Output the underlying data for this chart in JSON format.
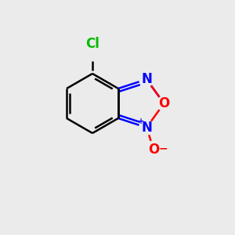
{
  "background_color": "#ebebeb",
  "bond_color": "#000000",
  "N_color": "#0000ff",
  "O_color": "#ff0000",
  "Cl_color": "#00bb00",
  "bond_width": 1.8,
  "figsize": [
    3.0,
    3.0
  ],
  "dpi": 100,
  "xlim": [
    0,
    300
  ],
  "ylim": [
    0,
    300
  ]
}
